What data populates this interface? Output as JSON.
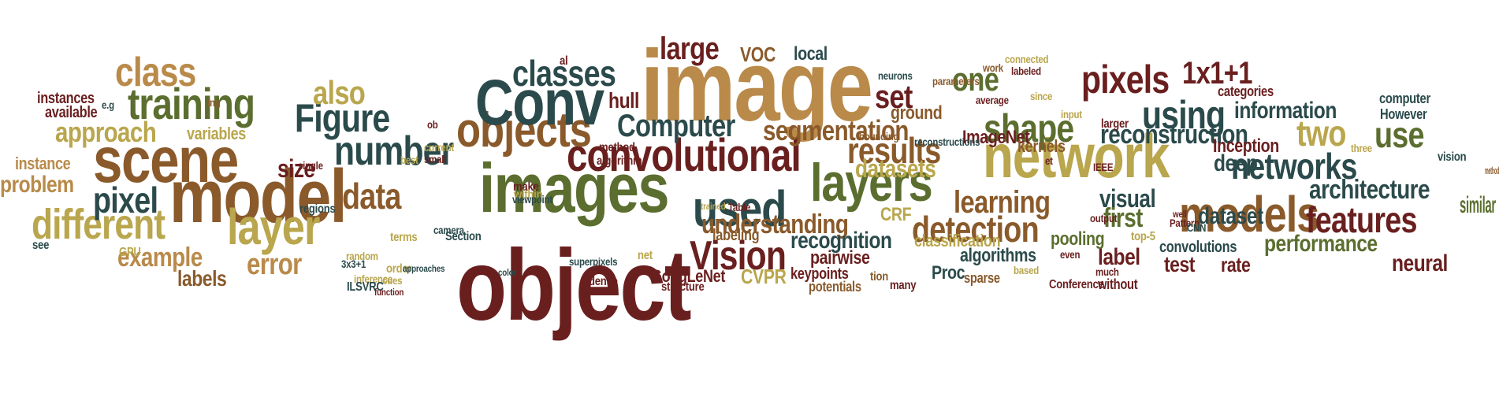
{
  "palette": {
    "olive": "#5b6e2f",
    "khaki": "#b9a64d",
    "teal": "#2b4a4b",
    "maroon": "#6a1f1f",
    "brown": "#8a5a2b",
    "tan": "#b98a4a",
    "rust": "#9b4a23"
  },
  "words": [
    {
      "text": "image",
      "color": "tan"
    },
    {
      "text": "object",
      "color": "maroon"
    },
    {
      "text": "images",
      "color": "olive"
    },
    {
      "text": "model",
      "color": "brown"
    },
    {
      "text": "scene",
      "color": "brown"
    },
    {
      "text": "network",
      "color": "khaki"
    },
    {
      "text": "convolutional",
      "color": "maroon"
    },
    {
      "text": "objects",
      "color": "brown"
    },
    {
      "text": "Conv",
      "color": "teal"
    },
    {
      "text": "layers",
      "color": "olive"
    },
    {
      "text": "models",
      "color": "brown"
    },
    {
      "text": "training",
      "color": "olive"
    },
    {
      "text": "layer",
      "color": "khaki"
    },
    {
      "text": "different",
      "color": "khaki"
    },
    {
      "text": "class",
      "color": "tan"
    },
    {
      "text": "number",
      "color": "teal"
    },
    {
      "text": "Figure",
      "color": "teal"
    },
    {
      "text": "used",
      "color": "teal"
    },
    {
      "text": "Vision",
      "color": "maroon"
    },
    {
      "text": "shape",
      "color": "olive"
    },
    {
      "text": "pixels",
      "color": "maroon"
    },
    {
      "text": "using",
      "color": "teal"
    },
    {
      "text": "classes",
      "color": "teal"
    },
    {
      "text": "networks",
      "color": "teal"
    },
    {
      "text": "features",
      "color": "maroon"
    },
    {
      "text": "detection",
      "color": "brown"
    },
    {
      "text": "results",
      "color": "brown"
    },
    {
      "text": "two",
      "color": "khaki"
    },
    {
      "text": "use",
      "color": "olive"
    },
    {
      "text": "pixel",
      "color": "teal"
    },
    {
      "text": "data",
      "color": "brown"
    },
    {
      "text": "also",
      "color": "khaki"
    },
    {
      "text": "set",
      "color": "maroon"
    },
    {
      "text": "one",
      "color": "olive"
    },
    {
      "text": "large",
      "color": "maroon"
    },
    {
      "text": "1x1+1",
      "color": "maroon"
    },
    {
      "text": "Computer",
      "color": "teal"
    },
    {
      "text": "learning",
      "color": "brown"
    },
    {
      "text": "reconstruction",
      "color": "teal"
    },
    {
      "text": "segmentation",
      "color": "brown"
    },
    {
      "text": "understanding",
      "color": "brown"
    },
    {
      "text": "architecture",
      "color": "teal"
    },
    {
      "text": "approach",
      "color": "khaki"
    },
    {
      "text": "example",
      "color": "tan"
    },
    {
      "text": "error",
      "color": "tan"
    },
    {
      "text": "visual",
      "color": "teal"
    },
    {
      "text": "first",
      "color": "olive"
    },
    {
      "text": "datasets",
      "color": "khaki"
    },
    {
      "text": "dataset",
      "color": "teal"
    },
    {
      "text": "size",
      "color": "maroon"
    },
    {
      "text": "labels",
      "color": "brown"
    },
    {
      "text": "information",
      "color": "teal"
    },
    {
      "text": "performance",
      "color": "olive"
    },
    {
      "text": "recognition",
      "color": "teal"
    },
    {
      "text": "label",
      "color": "maroon"
    },
    {
      "text": "neural",
      "color": "maroon"
    },
    {
      "text": "test",
      "color": "maroon"
    },
    {
      "text": "similar",
      "color": "olive"
    },
    {
      "text": "problem",
      "color": "tan"
    },
    {
      "text": "deep",
      "color": "teal"
    },
    {
      "text": "rate",
      "color": "maroon"
    },
    {
      "text": "hull",
      "color": "maroon"
    },
    {
      "text": "VOC",
      "color": "brown"
    },
    {
      "text": "local",
      "color": "teal"
    },
    {
      "text": "ground",
      "color": "brown"
    },
    {
      "text": "algorithms",
      "color": "teal"
    },
    {
      "text": "pooling",
      "color": "olive"
    },
    {
      "text": "pairwise",
      "color": "maroon"
    },
    {
      "text": "Inception",
      "color": "maroon"
    },
    {
      "text": "ImageNet",
      "color": "maroon"
    },
    {
      "text": "CRF",
      "color": "khaki"
    },
    {
      "text": "CVPR",
      "color": "khaki"
    },
    {
      "text": "Proc",
      "color": "teal"
    },
    {
      "text": "labeling",
      "color": "brown"
    },
    {
      "text": "variables",
      "color": "khaki"
    },
    {
      "text": "instances",
      "color": "maroon"
    },
    {
      "text": "available",
      "color": "maroon"
    },
    {
      "text": "instance",
      "color": "tan"
    },
    {
      "text": "classification",
      "color": "khaki"
    },
    {
      "text": "kernels",
      "color": "brown"
    },
    {
      "text": "categories",
      "color": "maroon"
    },
    {
      "text": "computer",
      "color": "teal"
    },
    {
      "text": "However",
      "color": "teal"
    },
    {
      "text": "vision",
      "color": "teal"
    },
    {
      "text": "methods",
      "color": "brown"
    },
    {
      "text": "three",
      "color": "khaki"
    },
    {
      "text": "convolutions",
      "color": "teal"
    },
    {
      "text": "keypoints",
      "color": "maroon"
    },
    {
      "text": "GoogLeNet",
      "color": "maroon"
    },
    {
      "text": "structure",
      "color": "maroon"
    },
    {
      "text": "dense",
      "color": "maroon"
    },
    {
      "text": "potentials",
      "color": "brown"
    },
    {
      "text": "tion",
      "color": "brown"
    },
    {
      "text": "many",
      "color": "maroon"
    },
    {
      "text": "sparse",
      "color": "brown"
    },
    {
      "text": "based",
      "color": "khaki"
    },
    {
      "text": "Conference",
      "color": "maroon"
    },
    {
      "text": "much",
      "color": "maroon"
    },
    {
      "text": "without",
      "color": "maroon"
    },
    {
      "text": "even",
      "color": "maroon"
    },
    {
      "text": "top-5",
      "color": "khaki"
    },
    {
      "text": "Pattern",
      "color": "maroon"
    },
    {
      "text": "well",
      "color": "maroon"
    },
    {
      "text": "CNN",
      "color": "teal"
    },
    {
      "text": "output",
      "color": "maroon"
    },
    {
      "text": "IEEE",
      "color": "maroon"
    },
    {
      "text": "et",
      "color": "maroon"
    },
    {
      "text": "larger",
      "color": "maroon"
    },
    {
      "text": "input",
      "color": "khaki"
    },
    {
      "text": "since",
      "color": "khaki"
    },
    {
      "text": "labeled",
      "color": "maroon"
    },
    {
      "text": "connected",
      "color": "khaki"
    },
    {
      "text": "work",
      "color": "brown"
    },
    {
      "text": "neurons",
      "color": "teal"
    },
    {
      "text": "parameters",
      "color": "brown"
    },
    {
      "text": "average",
      "color": "maroon"
    },
    {
      "text": "reconstructions",
      "color": "teal"
    },
    {
      "text": "bounding",
      "color": "brown"
    },
    {
      "text": "al",
      "color": "maroon"
    },
    {
      "text": "algorithm",
      "color": "maroon"
    },
    {
      "text": "method",
      "color": "maroon"
    },
    {
      "text": "ob",
      "color": "maroon"
    },
    {
      "text": "current",
      "color": "khaki"
    },
    {
      "text": "small",
      "color": "maroon"
    },
    {
      "text": "make",
      "color": "maroon"
    },
    {
      "text": "within",
      "color": "khaki"
    },
    {
      "text": "viewpoint",
      "color": "teal"
    },
    {
      "text": "camera",
      "color": "teal"
    },
    {
      "text": "Section",
      "color": "teal"
    },
    {
      "text": "trained",
      "color": "khaki"
    },
    {
      "text": "Table",
      "color": "maroon"
    },
    {
      "text": "terms",
      "color": "khaki"
    },
    {
      "text": "superpixels",
      "color": "teal"
    },
    {
      "text": "net",
      "color": "khaki"
    },
    {
      "text": "color",
      "color": "teal"
    },
    {
      "text": "order",
      "color": "khaki"
    },
    {
      "text": "inference",
      "color": "khaki"
    },
    {
      "text": "cues",
      "color": "khaki"
    },
    {
      "text": "ILSVRC",
      "color": "teal"
    },
    {
      "text": "3x3+1",
      "color": "teal"
    },
    {
      "text": "approaches",
      "color": "teal"
    },
    {
      "text": "function",
      "color": "maroon"
    },
    {
      "text": "random",
      "color": "khaki"
    },
    {
      "text": "best",
      "color": "khaki"
    },
    {
      "text": "single",
      "color": "maroon"
    },
    {
      "text": "regions",
      "color": "teal"
    },
    {
      "text": "GPU",
      "color": "khaki"
    },
    {
      "text": "see",
      "color": "teal"
    },
    {
      "text": "ing",
      "color": "brown"
    },
    {
      "text": "e.g",
      "color": "teal"
    }
  ]
}
